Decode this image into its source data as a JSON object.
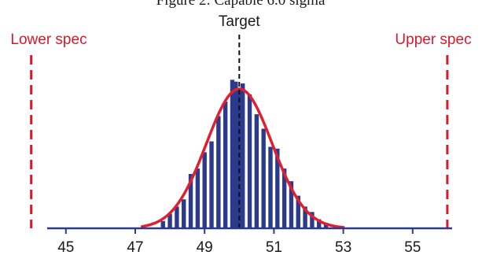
{
  "chart_data": {
    "type": "bar",
    "caption": "Figure 2: Capable 6.0 sigma",
    "x_ticks": [
      45,
      47,
      49,
      51,
      53,
      55
    ],
    "xlim": [
      43.1,
      57.0
    ],
    "ylim": [
      0,
      1.0
    ],
    "target": {
      "label": "Target",
      "x": 50,
      "color": "#111111"
    },
    "specs": [
      {
        "label": "Lower spec",
        "x": 44,
        "color": "#d7192b"
      },
      {
        "label": "Upper spec",
        "x": 56,
        "color": "#d7192b"
      }
    ],
    "histogram": {
      "color": "#2b3a8c",
      "bin_width": 0.17,
      "bins": [
        [
          47.8,
          0.04
        ],
        [
          48.0,
          0.08
        ],
        [
          48.2,
          0.12
        ],
        [
          48.4,
          0.16
        ],
        [
          48.6,
          0.3
        ],
        [
          48.8,
          0.33
        ],
        [
          49.0,
          0.42
        ],
        [
          49.2,
          0.48
        ],
        [
          49.4,
          0.62
        ],
        [
          49.6,
          0.7
        ],
        [
          49.8,
          0.82
        ],
        [
          49.9,
          0.81
        ],
        [
          50.0,
          0.77
        ],
        [
          50.1,
          0.8
        ],
        [
          50.3,
          0.74
        ],
        [
          50.5,
          0.63
        ],
        [
          50.7,
          0.55
        ],
        [
          50.9,
          0.45
        ],
        [
          51.1,
          0.44
        ],
        [
          51.3,
          0.33
        ],
        [
          51.5,
          0.26
        ],
        [
          51.7,
          0.18
        ],
        [
          51.9,
          0.12
        ],
        [
          52.1,
          0.09
        ],
        [
          52.3,
          0.05
        ],
        [
          52.5,
          0.03
        ]
      ]
    },
    "fit_curve": {
      "color": "#e0202e",
      "mean": 50.0,
      "sd": 0.95,
      "peak": 0.77,
      "x_range": [
        47.2,
        53.0
      ]
    }
  }
}
